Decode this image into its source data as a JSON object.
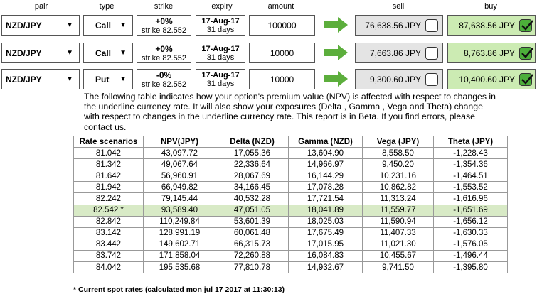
{
  "headers": {
    "pair": "pair",
    "type": "type",
    "strike": "strike",
    "expiry": "expiry",
    "amount": "amount",
    "sell": "sell",
    "buy": "buy"
  },
  "rows": [
    {
      "pair": "NZD/JPY",
      "type": "Call",
      "strike_pct": "+0%",
      "strike_val": "strike 82.552",
      "expiry_date": "17-Aug-17",
      "expiry_days": "31 days",
      "amount": "100000",
      "sell": "76,638.56 JPY",
      "buy": "87,638.56 JPY"
    },
    {
      "pair": "NZD/JPY",
      "type": "Call",
      "strike_pct": "+0%",
      "strike_val": "strike 82.552",
      "expiry_date": "17-Aug-17",
      "expiry_days": "31 days",
      "amount": "10000",
      "sell": "7,663.86 JPY",
      "buy": "8,763.86 JPY"
    },
    {
      "pair": "NZD/JPY",
      "type": "Put",
      "strike_pct": "-0%",
      "strike_val": "strike 82.552",
      "expiry_date": "17-Aug-17",
      "expiry_days": "31 days",
      "amount": "10000",
      "sell": "9,300.60 JPY",
      "buy": "10,400.60 JPY"
    }
  ],
  "description": "The following table indicates how your option's premium value (NPV) is affected with respect to changes in the underline currency rate. It will also show your exposures (Delta , Gamma , Vega and Theta) change with respect to changes in the underline currency rate. This report is in Beta. If you find errors, please contact us.",
  "table": {
    "columns": [
      "Rate scenarios",
      "NPV(JPY)",
      "Delta (NZD)",
      "Gamma (NZD)",
      "Vega (JPY)",
      "Theta (JPY)"
    ],
    "rows": [
      [
        "81.042",
        "43,097.72",
        "17,055.36",
        "13,604.90",
        "8,558.50",
        "-1,228.43"
      ],
      [
        "81.342",
        "49,067.64",
        "22,336.64",
        "14,966.97",
        "9,450.20",
        "-1,354.36"
      ],
      [
        "81.642",
        "56,960.91",
        "28,067.69",
        "16,144.29",
        "10,231.16",
        "-1,464.51"
      ],
      [
        "81.942",
        "66,949.82",
        "34,166.45",
        "17,078.28",
        "10,862.82",
        "-1,553.52"
      ],
      [
        "82.242",
        "79,145.44",
        "40,532.28",
        "17,721.54",
        "11,313.24",
        "-1,616.96"
      ],
      [
        "82.542 *",
        "93,589.40",
        "47,051.05",
        "18,041.89",
        "11,559.77",
        "-1,651.69"
      ],
      [
        "82.842",
        "110,249.84",
        "53,601.39",
        "18,025.03",
        "11,590.94",
        "-1,656.12"
      ],
      [
        "83.142",
        "128,991.19",
        "60,061.48",
        "17,675.49",
        "11,407.33",
        "-1,630.33"
      ],
      [
        "83.442",
        "149,602.71",
        "66,315.73",
        "17,015.95",
        "11,021.30",
        "-1,576.05"
      ],
      [
        "83.742",
        "171,858.04",
        "72,260.88",
        "16,084.83",
        "10,455.67",
        "-1,496.44"
      ],
      [
        "84.042",
        "195,535.68",
        "77,810.78",
        "14,932.67",
        "9,741.50",
        "-1,395.80"
      ]
    ],
    "highlight_row": 5
  },
  "footnote": "* Current spot rates (calculated mon jul 17 2017 at 11:30:13)",
  "colors": {
    "arrow": "#5cae3c",
    "buy_bg": "#ccebb3",
    "sell_bg": "#e4e4e4",
    "highlight": "#d8eac6"
  }
}
